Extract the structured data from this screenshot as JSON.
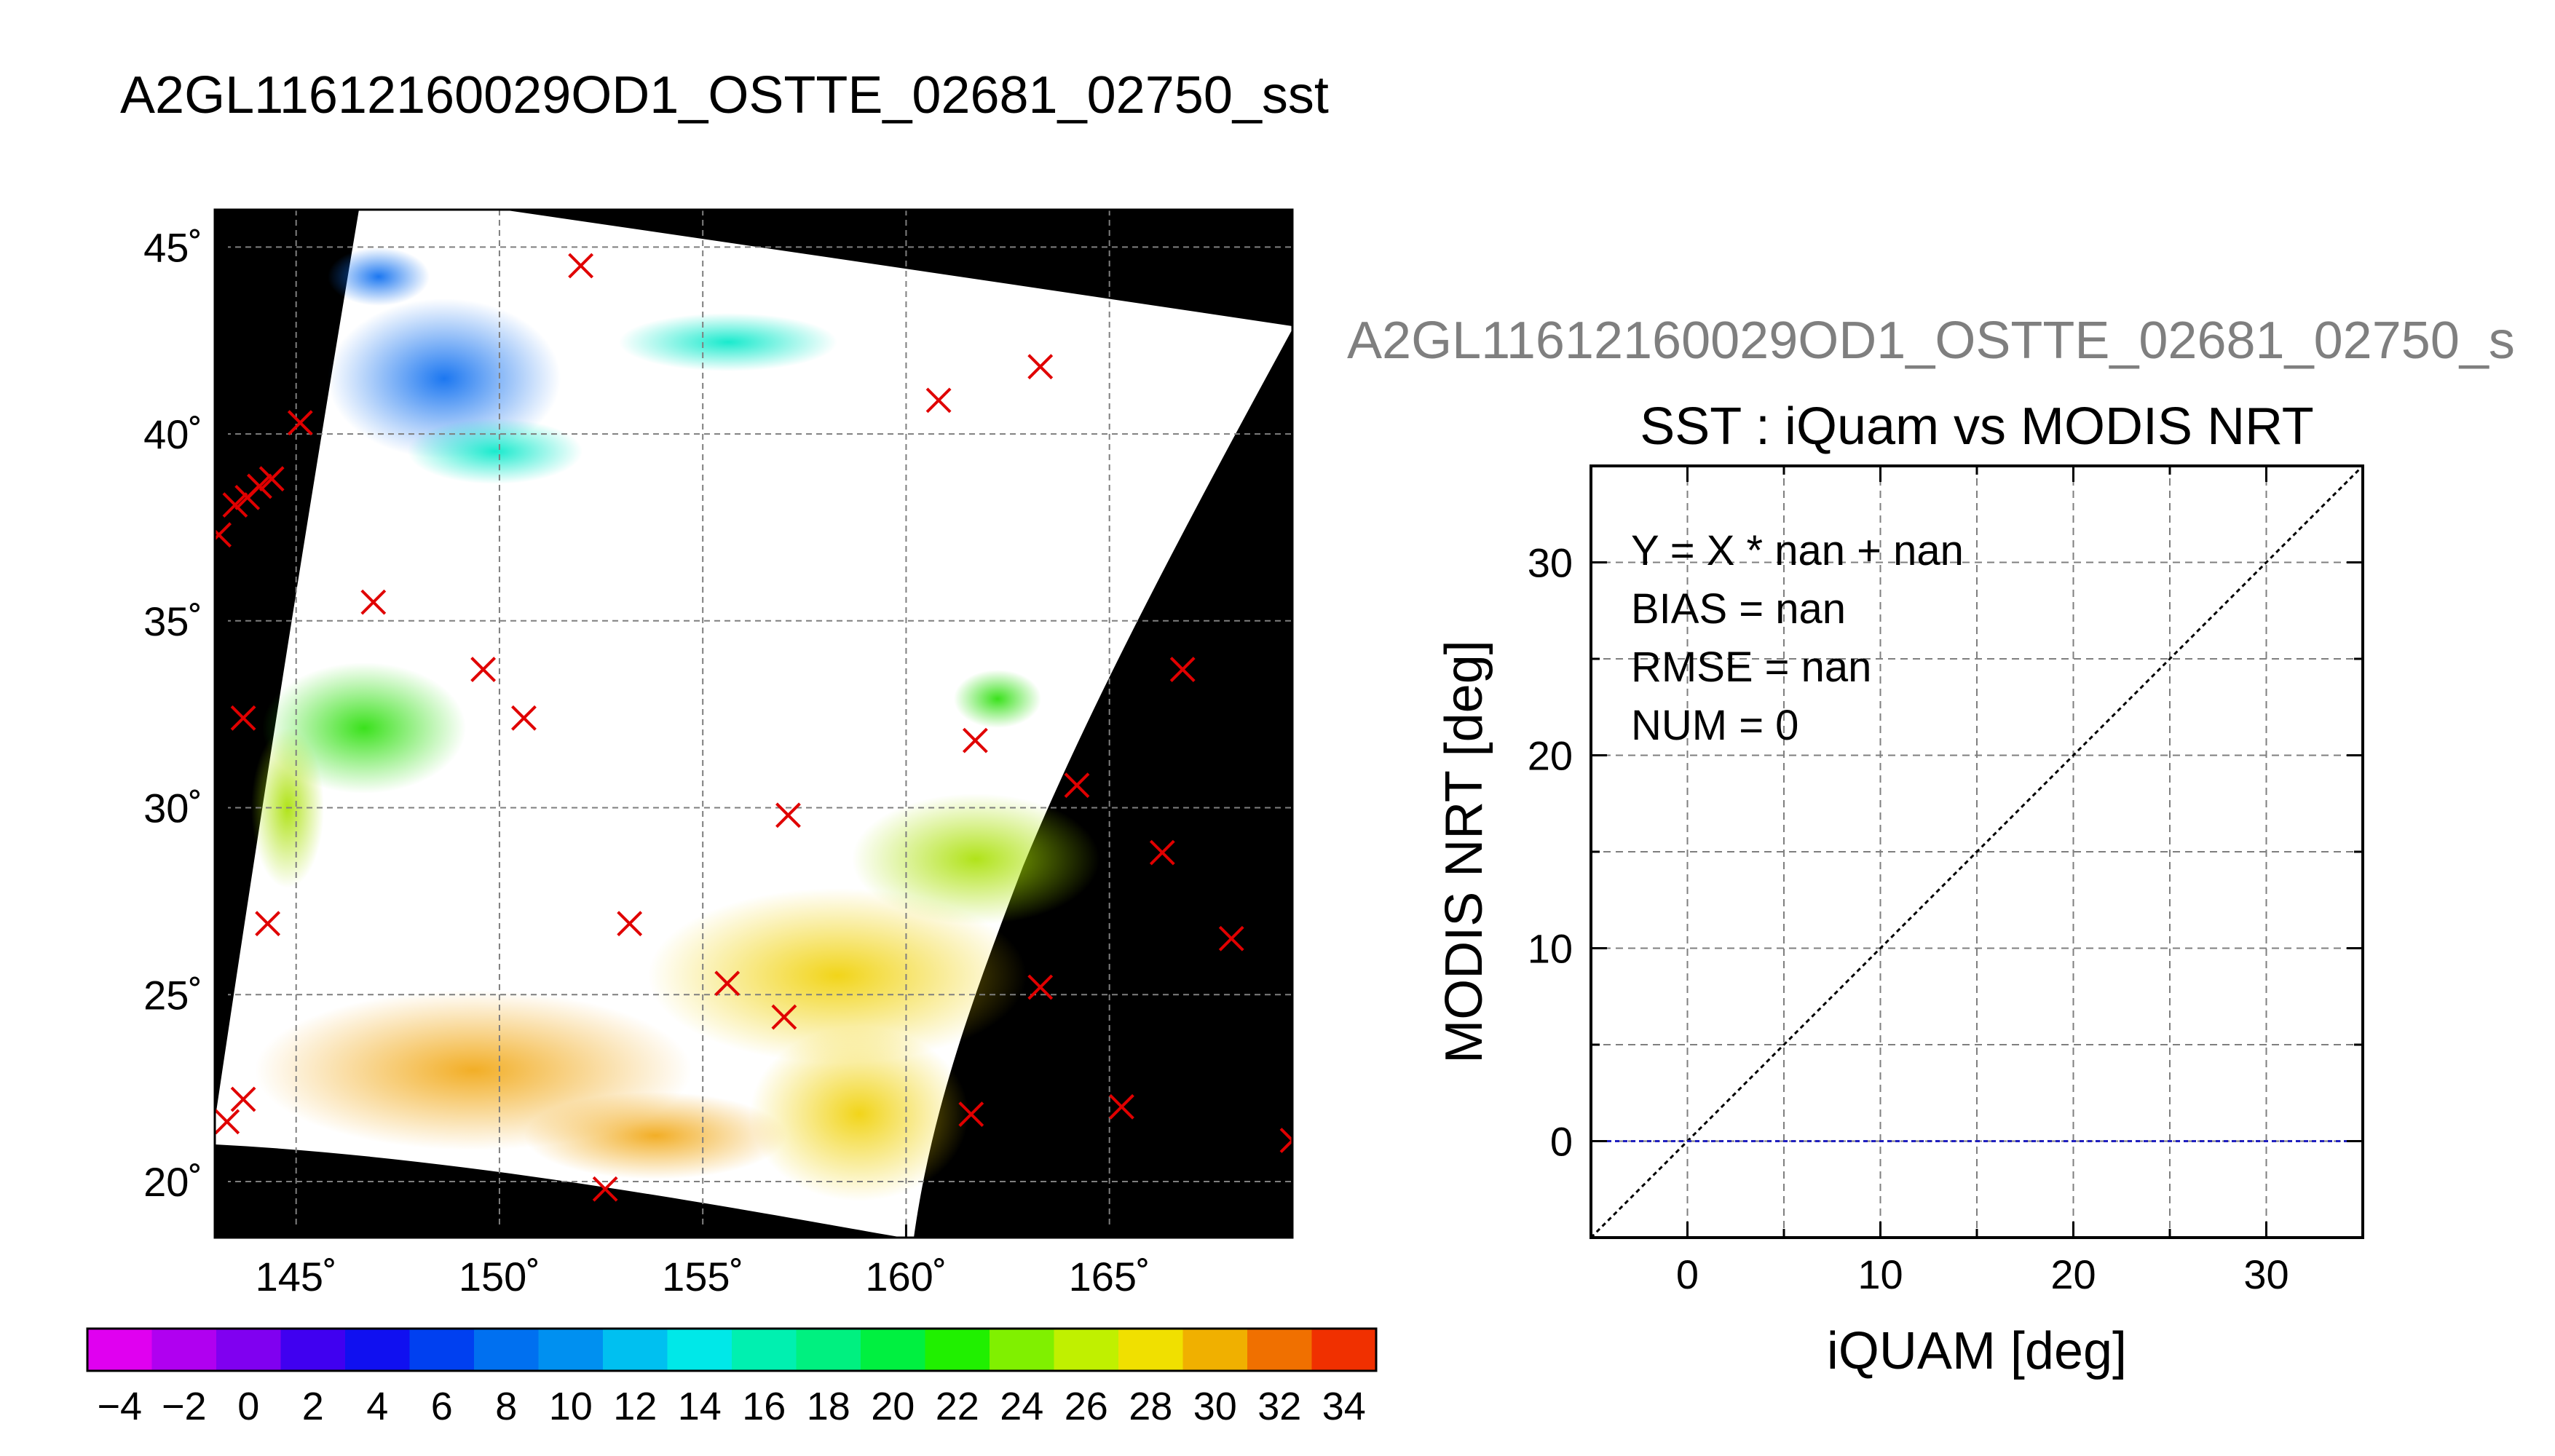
{
  "page": {
    "main_title": "A2GL11612160029OD1_OSTTE_02681_02750_sst",
    "scatter_header": "A2GL11612160029OD1_OSTTE_02681_02750_s"
  },
  "colors": {
    "background": "#ffffff",
    "map_background": "#000000",
    "marker": "#e00000",
    "grid": "#7f7f7f",
    "one_to_one_line": "#000000",
    "regression_line": "#1f1fbf",
    "gray_title": "#7f7f7f"
  },
  "chart_data": [
    {
      "type": "map",
      "name": "sst-swath-map",
      "xlim": [
        143,
        169.5
      ],
      "ylim": [
        18.5,
        46
      ],
      "x_ticks": [
        145,
        150,
        155,
        160,
        165
      ],
      "x_tick_labels": [
        "145˚",
        "150˚",
        "155˚",
        "160˚",
        "165˚"
      ],
      "y_ticks": [
        20,
        25,
        30,
        35,
        40,
        45
      ],
      "y_tick_labels": [
        "20˚",
        "25˚",
        "30˚",
        "35˚",
        "40˚",
        "45˚"
      ],
      "grid": true,
      "markers": [
        {
          "lon": 152.0,
          "lat": 44.5
        },
        {
          "lon": 160.8,
          "lat": 40.9
        },
        {
          "lon": 163.3,
          "lat": 41.8
        },
        {
          "lon": 145.1,
          "lat": 40.3
        },
        {
          "lon": 144.4,
          "lat": 38.8
        },
        {
          "lon": 144.1,
          "lat": 38.6
        },
        {
          "lon": 143.8,
          "lat": 38.3
        },
        {
          "lon": 143.5,
          "lat": 38.1
        },
        {
          "lon": 143.1,
          "lat": 37.3
        },
        {
          "lon": 146.9,
          "lat": 35.5
        },
        {
          "lon": 149.6,
          "lat": 33.7
        },
        {
          "lon": 150.6,
          "lat": 32.4
        },
        {
          "lon": 143.7,
          "lat": 32.4
        },
        {
          "lon": 166.8,
          "lat": 33.7
        },
        {
          "lon": 161.7,
          "lat": 31.8
        },
        {
          "lon": 164.2,
          "lat": 30.6
        },
        {
          "lon": 157.1,
          "lat": 29.8
        },
        {
          "lon": 166.3,
          "lat": 28.8
        },
        {
          "lon": 144.3,
          "lat": 26.9
        },
        {
          "lon": 153.2,
          "lat": 26.9
        },
        {
          "lon": 168.0,
          "lat": 26.5
        },
        {
          "lon": 155.6,
          "lat": 25.3
        },
        {
          "lon": 163.3,
          "lat": 25.2
        },
        {
          "lon": 157.0,
          "lat": 24.4
        },
        {
          "lon": 143.7,
          "lat": 22.2
        },
        {
          "lon": 143.3,
          "lat": 21.6
        },
        {
          "lon": 161.6,
          "lat": 21.8
        },
        {
          "lon": 165.3,
          "lat": 22.0
        },
        {
          "lon": 169.5,
          "lat": 21.1
        },
        {
          "lon": 152.6,
          "lat": 19.8
        }
      ],
      "colorbar": {
        "min": -5,
        "max": 35,
        "step": 2,
        "tick_labels": [
          "−4",
          "−2",
          "0",
          "2",
          "4",
          "6",
          "8",
          "10",
          "12",
          "14",
          "16",
          "18",
          "20",
          "22",
          "24",
          "26",
          "28",
          "30",
          "32",
          "34"
        ],
        "colors": [
          "#e000f0",
          "#b000f0",
          "#8000f0",
          "#4000f0",
          "#1010f0",
          "#0040f0",
          "#0070f0",
          "#0090f0",
          "#00c0f0",
          "#00e8e8",
          "#00f0b0",
          "#00f080",
          "#00f040",
          "#20f000",
          "#80f000",
          "#c0f000",
          "#f0e000",
          "#f0b000",
          "#f07000",
          "#f03000"
        ]
      }
    },
    {
      "type": "scatter",
      "name": "iquam-vs-modis-scatter",
      "title": "SST : iQuam vs MODIS NRT",
      "xlabel": "iQUAM [deg]",
      "ylabel": "MODIS NRT [deg]",
      "xlim": [
        -5,
        35
      ],
      "ylim": [
        -5,
        35
      ],
      "x_ticks": [
        0,
        10,
        20,
        30
      ],
      "y_ticks": [
        0,
        10,
        20,
        30
      ],
      "grid_step": 5,
      "grid": true,
      "stats": [
        "Y = X * nan + nan",
        "BIAS = nan",
        "RMSE = nan",
        "NUM = 0"
      ],
      "reference_line": {
        "x": [
          -5,
          35
        ],
        "y": [
          -5,
          35
        ]
      },
      "horizontal_line_y": 0,
      "points": []
    }
  ]
}
